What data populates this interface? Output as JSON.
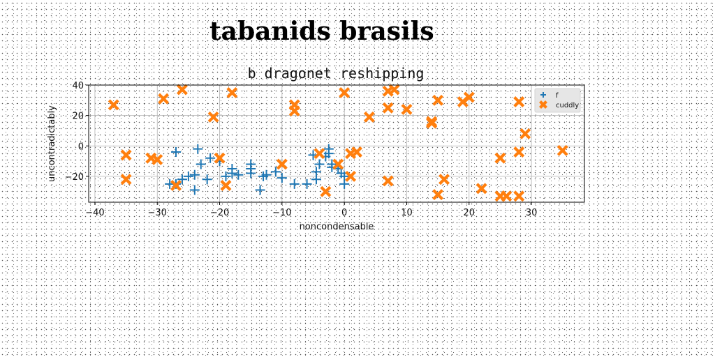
{
  "figure": {
    "title": "tabanids brasils"
  },
  "chart_data": {
    "type": "scatter",
    "title": "b dragonet reshipping",
    "xlabel": "noncondensable",
    "ylabel": "uncontradictably",
    "xlim": [
      -41,
      38.5
    ],
    "ylim": [
      -37,
      40
    ],
    "xticks": [
      -40,
      -30,
      -20,
      -10,
      0,
      10,
      20,
      30
    ],
    "yticks": [
      -20,
      0,
      20,
      40
    ],
    "grid": true,
    "legend_position": "top-right",
    "series": [
      {
        "name": "f",
        "marker": "plus",
        "color": "#1f77b4",
        "points": [
          [
            -28,
            -25
          ],
          [
            -27,
            -4
          ],
          [
            -27,
            -25
          ],
          [
            -26,
            -22
          ],
          [
            -25,
            -20
          ],
          [
            -24,
            -19
          ],
          [
            -24,
            -29
          ],
          [
            -23.5,
            -2
          ],
          [
            -23,
            -12
          ],
          [
            -22,
            -22
          ],
          [
            -21.5,
            -8
          ],
          [
            -20,
            -10
          ],
          [
            -19,
            -20
          ],
          [
            -18,
            -18
          ],
          [
            -18,
            -15
          ],
          [
            -17,
            -19
          ],
          [
            -15,
            -12
          ],
          [
            -15,
            -15
          ],
          [
            -15,
            -18
          ],
          [
            -13.5,
            -29
          ],
          [
            -13,
            -20
          ],
          [
            -12.5,
            -19
          ],
          [
            -11,
            -17
          ],
          [
            -10,
            -21
          ],
          [
            -8,
            -25
          ],
          [
            -6,
            -25
          ],
          [
            -5,
            -6
          ],
          [
            -4.5,
            -22
          ],
          [
            -4.5,
            -17
          ],
          [
            -4,
            -12
          ],
          [
            -3,
            -7
          ],
          [
            -2.5,
            -2
          ],
          [
            -2.5,
            -5
          ],
          [
            -2,
            -12
          ],
          [
            -2,
            -14
          ],
          [
            -1,
            -15
          ],
          [
            -0.5,
            -18
          ],
          [
            0,
            -20
          ],
          [
            0,
            -25
          ]
        ]
      },
      {
        "name": "cuddly",
        "marker": "x",
        "color": "#ff7f0e",
        "points": [
          [
            -37,
            27
          ],
          [
            -35,
            -6
          ],
          [
            -35,
            -22
          ],
          [
            -31,
            -8
          ],
          [
            -30,
            -9
          ],
          [
            -29,
            31
          ],
          [
            -27,
            -26
          ],
          [
            -26,
            37
          ],
          [
            -21,
            19
          ],
          [
            -20,
            -8
          ],
          [
            -19,
            -26
          ],
          [
            -18,
            35
          ],
          [
            -10,
            -12
          ],
          [
            -8,
            27
          ],
          [
            -8,
            23
          ],
          [
            -4,
            -5
          ],
          [
            -3,
            -30
          ],
          [
            -1,
            -12
          ],
          [
            0,
            35
          ],
          [
            1,
            -5
          ],
          [
            1,
            -20
          ],
          [
            2,
            -4
          ],
          [
            4,
            19
          ],
          [
            7,
            36
          ],
          [
            7,
            25
          ],
          [
            7,
            -23
          ],
          [
            8,
            37
          ],
          [
            10,
            24
          ],
          [
            14,
            16
          ],
          [
            14,
            15
          ],
          [
            15,
            30
          ],
          [
            15,
            -32
          ],
          [
            16,
            -22
          ],
          [
            19,
            29
          ],
          [
            20,
            32
          ],
          [
            22,
            -28
          ],
          [
            25,
            -8
          ],
          [
            25,
            -33
          ],
          [
            26,
            -33
          ],
          [
            28,
            -33
          ],
          [
            28,
            -4
          ],
          [
            28,
            29
          ],
          [
            29,
            8
          ],
          [
            35,
            -3
          ]
        ]
      }
    ]
  }
}
